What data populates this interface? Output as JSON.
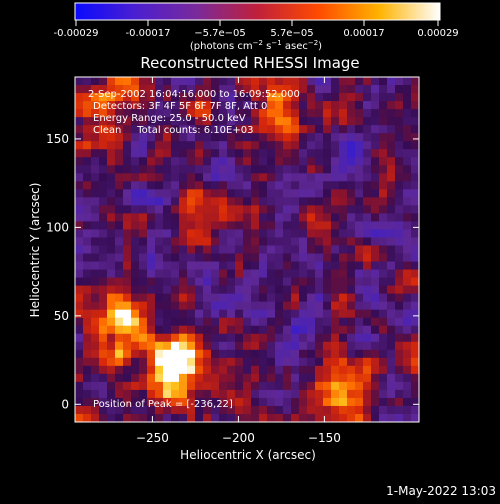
{
  "colorbar": {
    "tick_labels": [
      "-0.00029",
      "-0.00017",
      "−5.7e−05",
      "5.7e−05",
      "0.00017",
      "0.00029"
    ],
    "range": [
      -0.00029,
      0.00029
    ],
    "colors": [
      "#0a0aff",
      "#4b1fd0",
      "#7a2a9a",
      "#c0203a",
      "#ff4a00",
      "#ffb300",
      "#ffffff"
    ]
  },
  "chart_data": {
    "type": "heatmap",
    "title": "Reconstructed RHESSI Image",
    "xlabel": "Heliocentric X (arcsec)",
    "ylabel": "Heliocentric Y (arcsec)",
    "xlim": [
      -295,
      -95
    ],
    "ylim": [
      -10,
      185
    ],
    "x_ticks": [
      -250,
      -200,
      -150
    ],
    "y_ticks": [
      0,
      50,
      100,
      150
    ],
    "info_lines": [
      "2-Sep-2002 16:04:16.000 to 16:09:52.000",
      "Detectors: 3F 4F 5F 6F 7F 8F, Att 0",
      "Energy Range: 25.0 - 50.0 keV",
      "Clean     Total counts: 6.10E+03"
    ],
    "peak_label": "Position of Peak = [-236,22]",
    "peak": {
      "x": -236,
      "y": 22
    },
    "bright_regions": [
      {
        "x": -236,
        "y": 22,
        "value": 0.00029
      },
      {
        "x": -270,
        "y": 45,
        "value": 0.00024
      },
      {
        "x": -140,
        "y": 10,
        "value": 0.00021
      },
      {
        "x": -275,
        "y": 165,
        "value": 0.00014
      },
      {
        "x": -180,
        "y": 165,
        "value": 0.00014
      },
      {
        "x": -215,
        "y": 110,
        "value": 0.00012
      }
    ],
    "grid": false
  },
  "footer": {
    "timestamp": "1-May-2022 13:03"
  }
}
